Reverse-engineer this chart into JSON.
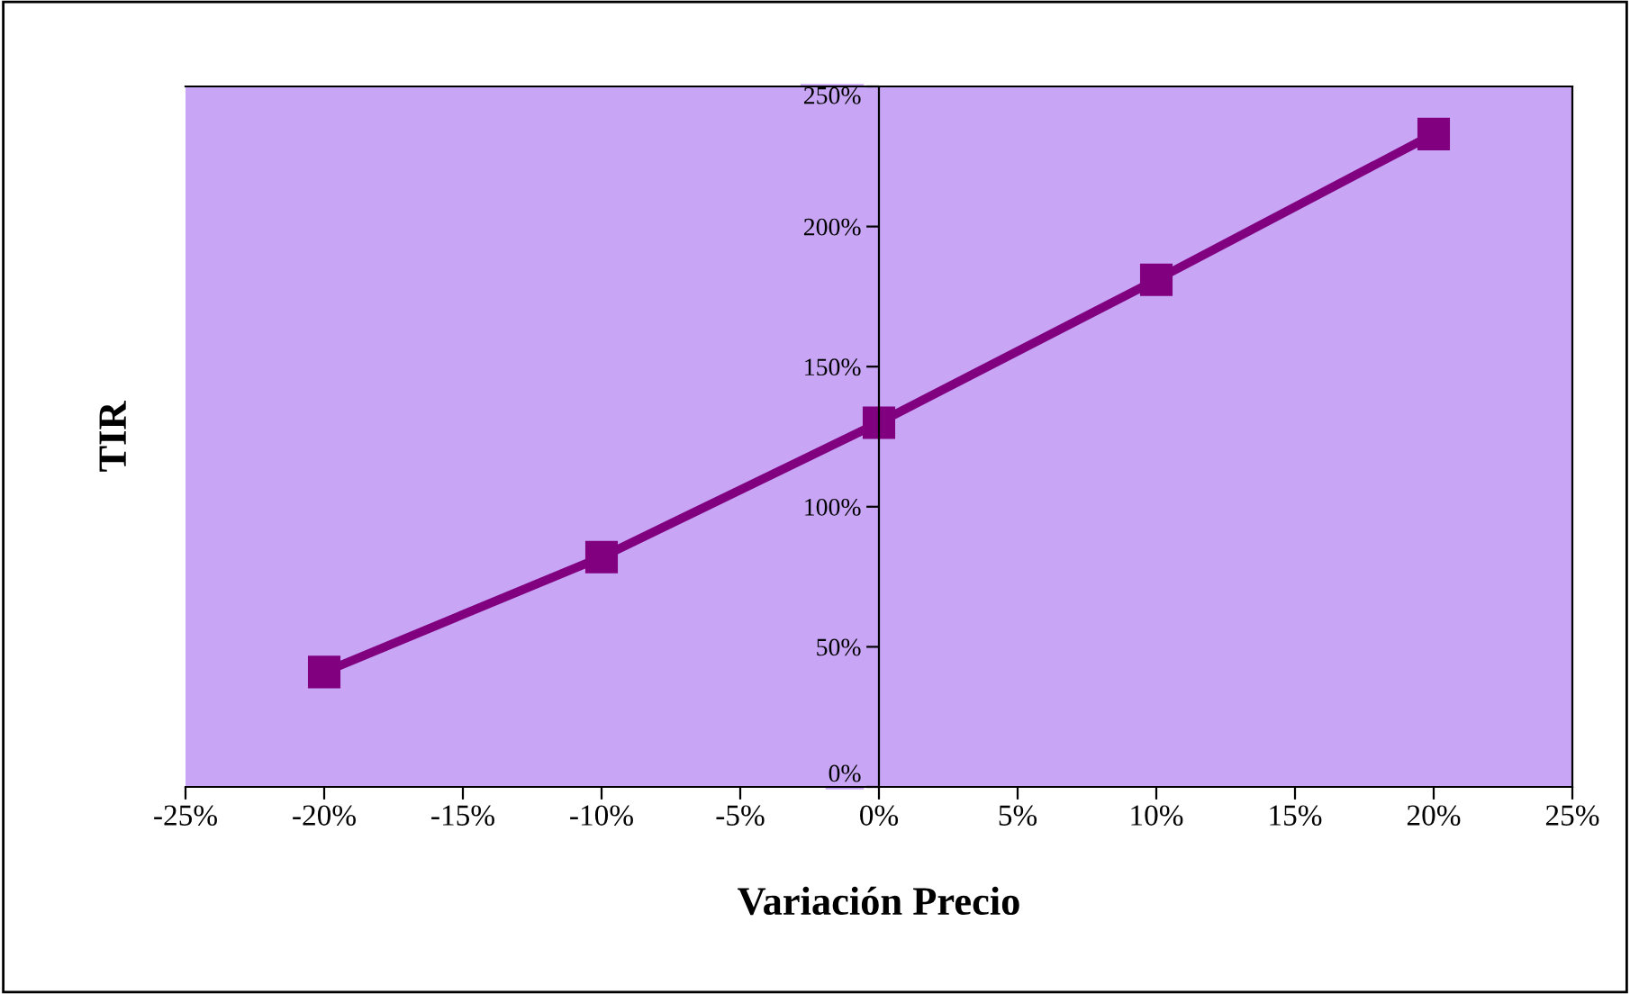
{
  "chart_data": {
    "type": "line",
    "xlabel": "Variación Precio",
    "ylabel": "TIR",
    "x": [
      -20,
      -10,
      0,
      10,
      20
    ],
    "series": [
      {
        "color": "#800080",
        "values": [
          41,
          82,
          130,
          181,
          233
        ]
      }
    ],
    "xlim": [
      -25,
      25
    ],
    "ylim": [
      0,
      250
    ],
    "xticks": [
      {
        "value": -25,
        "label": "-25%"
      },
      {
        "value": -20,
        "label": "-20%"
      },
      {
        "value": -15,
        "label": "-15%"
      },
      {
        "value": -10,
        "label": "-10%"
      },
      {
        "value": -5,
        "label": "-5%"
      },
      {
        "value": 0,
        "label": "0%"
      },
      {
        "value": 5,
        "label": "5%"
      },
      {
        "value": 10,
        "label": "10%"
      },
      {
        "value": 15,
        "label": "15%"
      },
      {
        "value": 20,
        "label": "20%"
      },
      {
        "value": 25,
        "label": "25%"
      }
    ],
    "yticks": [
      {
        "value": 0,
        "label": "0%"
      },
      {
        "value": 50,
        "label": "50%"
      },
      {
        "value": 100,
        "label": "100%"
      },
      {
        "value": 150,
        "label": "150%"
      },
      {
        "value": 200,
        "label": "200%"
      },
      {
        "value": 250,
        "label": "250%"
      }
    ],
    "marker": "square",
    "line_style": "solid",
    "grid": false,
    "legend": false
  }
}
